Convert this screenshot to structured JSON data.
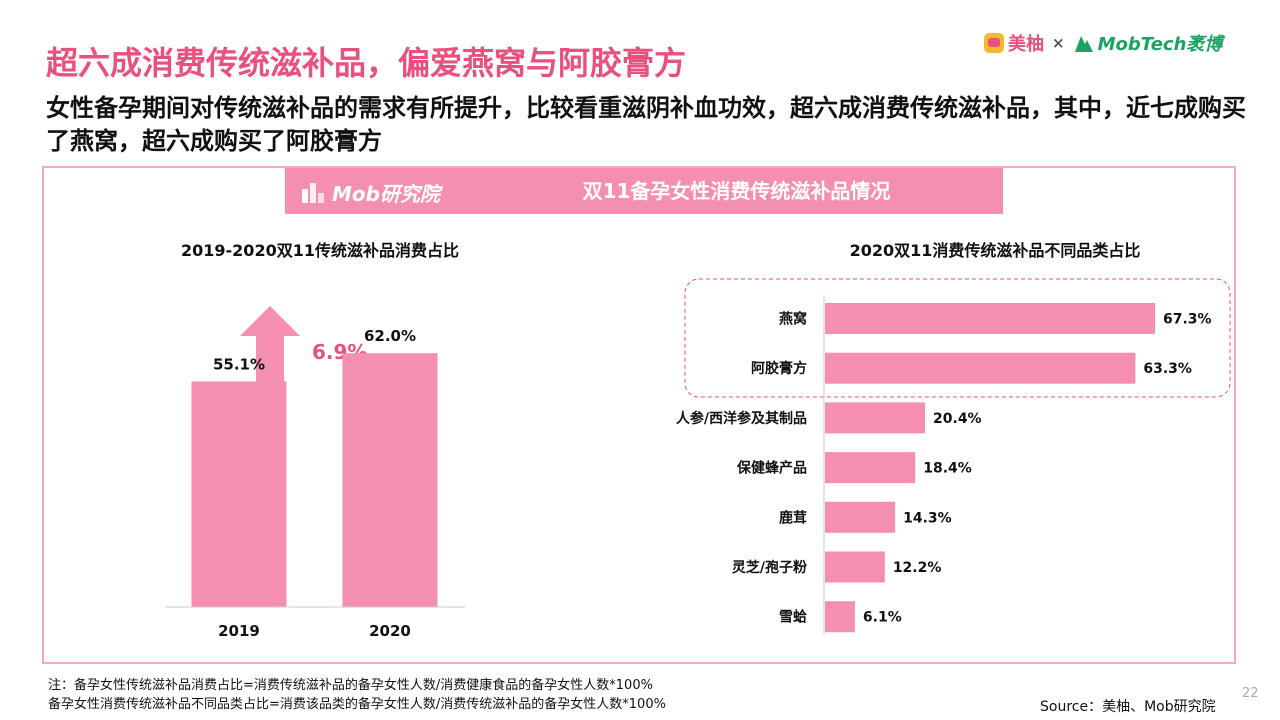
{
  "header": {
    "title": "超六成消费传统滋补品，偏爱燕窝与阿胶膏方",
    "subtitle": "女性备孕期间对传统滋补品的需求有所提升，比较看重滋阴补血功效，超六成消费传统滋补品，其中，近七成购买了燕窝，超六成购买了阿胶膏方"
  },
  "brand": {
    "name1": "美柚",
    "sep": "×",
    "name2": "MobTech袤博"
  },
  "banner": {
    "logo_text": "Mob研究院",
    "title": "双11备孕女性消费传统滋补品情况"
  },
  "colors": {
    "accent": "#e8507d",
    "bar": "#f48fb1",
    "frame": "#f7a8c1"
  },
  "chart_data": [
    {
      "type": "bar",
      "title": "2019-2020双11传统滋补品消费占比",
      "categories": [
        "2019",
        "2020"
      ],
      "values": [
        55.1,
        62.0
      ],
      "value_labels": [
        "55.1%",
        "62.0%"
      ],
      "ylim": [
        0,
        75
      ],
      "annotation": "6.9%",
      "xlabel": "",
      "ylabel": ""
    },
    {
      "type": "bar",
      "orientation": "horizontal",
      "title": "2020双11消费传统滋补品不同品类占比",
      "categories": [
        "燕窝",
        "阿胶膏方",
        "人参/西洋参及其制品",
        "保健蜂产品",
        "鹿茸",
        "灵芝/孢子粉",
        "雪蛤"
      ],
      "values": [
        67.3,
        63.3,
        20.4,
        18.4,
        14.3,
        12.2,
        6.1
      ],
      "value_labels": [
        "67.3%",
        "63.3%",
        "20.4%",
        "18.4%",
        "14.3%",
        "12.2%",
        "6.1%"
      ],
      "xlim": [
        0,
        70
      ],
      "highlighted": [
        "燕窝",
        "阿胶膏方"
      ]
    }
  ],
  "notes": {
    "line1": "注：备孕女性传统滋补品消费占比=消费传统滋补品的备孕女性人数/消费健康食品的备孕女性人数*100%",
    "line2": "备孕女性消费传统滋补品不同品类占比=消费该品类的备孕女性人数/消费传统滋补品的备孕女性人数*100%"
  },
  "source": "Source：美柚、Mob研究院",
  "page_number": "22"
}
